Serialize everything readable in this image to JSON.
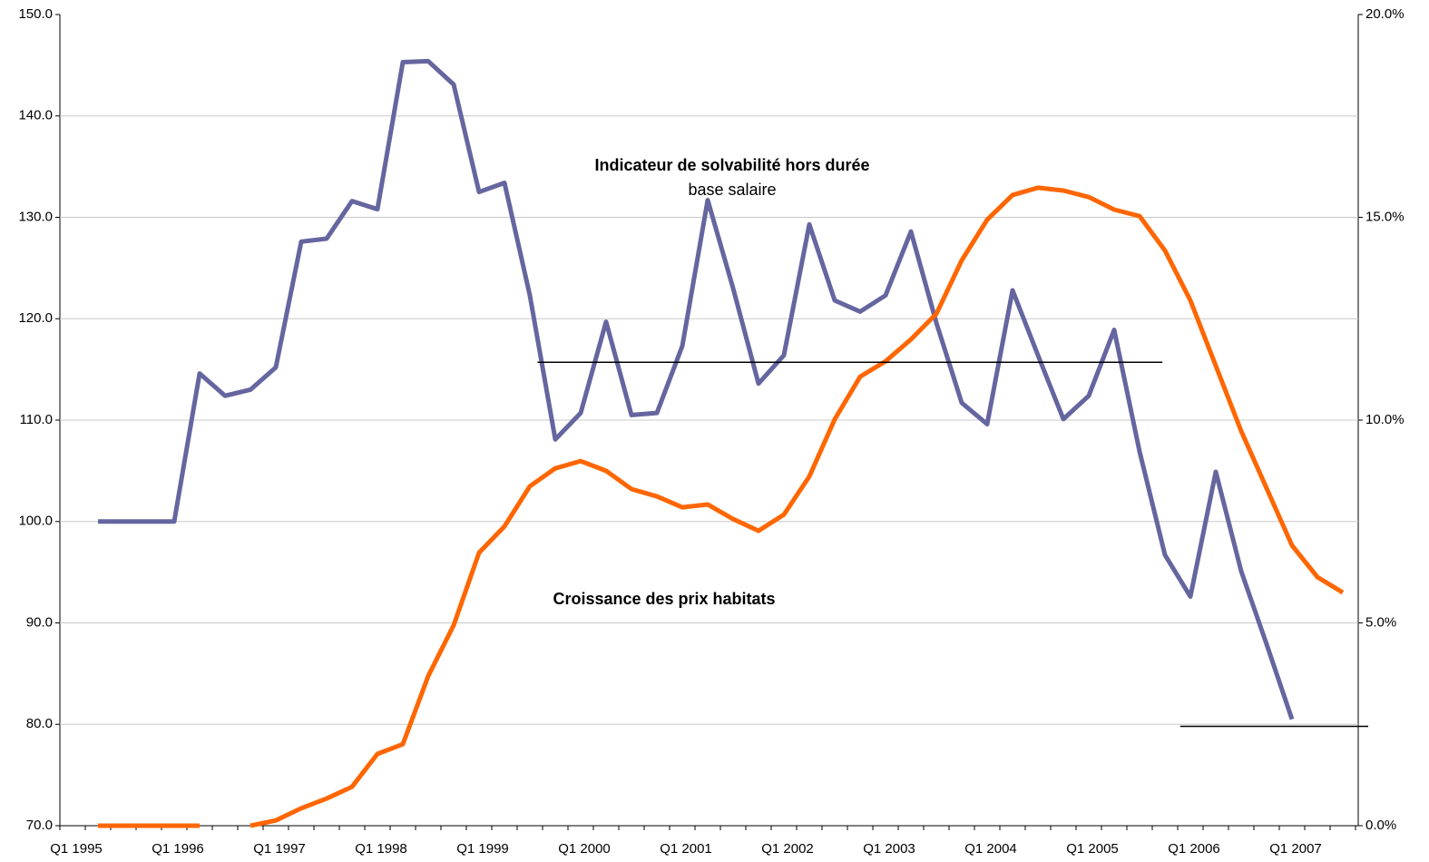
{
  "chart_data": {
    "type": "line",
    "categories": [
      "Q1 1995",
      null,
      null,
      null,
      "Q1 1996",
      null,
      null,
      null,
      "Q1 1997",
      null,
      null,
      null,
      "Q1 1998",
      null,
      null,
      null,
      "Q1 1999",
      null,
      null,
      null,
      "Q1 2000",
      null,
      null,
      null,
      "Q1 2001",
      null,
      null,
      null,
      "Q1 2002",
      null,
      null,
      null,
      "Q1 2003",
      null,
      null,
      null,
      "Q1 2004",
      null,
      null,
      null,
      "Q1 2005",
      null,
      null,
      null,
      "Q1 2006",
      null,
      null,
      null,
      "Q1 2007",
      null,
      null
    ],
    "series": [
      {
        "name": "Indicateur de solvabilité hors durée",
        "color": "#65659f",
        "axis": "y",
        "values": [
          null,
          100,
          100,
          100,
          100,
          114.6,
          112.4,
          113.0,
          115.2,
          127.6,
          127.9,
          131.6,
          130.8,
          145.3,
          145.4,
          143.1,
          132.5,
          133.4,
          122.3,
          108.1,
          110.7,
          119.7,
          110.5,
          110.7,
          117.3,
          131.7,
          123.0,
          113.6,
          116.4,
          129.3,
          121.8,
          120.7,
          122.3,
          128.6,
          119.6,
          111.7,
          109.6,
          122.8,
          116.4,
          110.1,
          112.4,
          118.9,
          106.9,
          96.7,
          92.6,
          104.9,
          95.1,
          87.9,
          80.5,
          null,
          null
        ]
      },
      {
        "name": "Croissance des prix habitats",
        "color": "#ff6600",
        "axis": "y2",
        "values": [
          null,
          0,
          0,
          0,
          0,
          0,
          null,
          0,
          0.13,
          0.43,
          0.67,
          0.96,
          1.77,
          2.01,
          3.69,
          4.94,
          6.73,
          7.38,
          8.37,
          8.81,
          8.99,
          8.75,
          8.3,
          8.12,
          7.85,
          7.92,
          7.56,
          7.27,
          7.67,
          8.61,
          10.02,
          11.07,
          11.45,
          11.99,
          12.62,
          13.94,
          14.94,
          15.55,
          15.73,
          15.66,
          15.5,
          15.19,
          15.03,
          14.18,
          12.95,
          11.34,
          9.73,
          8.32,
          6.91,
          6.13,
          5.75
        ]
      }
    ],
    "annotations": [
      "Indicateur de solvabilité hors durée",
      "base salaire",
      "Croissance des prix habitats"
    ],
    "hlines": [
      {
        "value": 115.7,
        "x_range": [
          18.3,
          42.9
        ],
        "color": "#000000"
      },
      {
        "value": 79.8,
        "x_range": [
          43.6,
          51.0
        ],
        "color": "#000000"
      }
    ],
    "ylim": [
      70,
      150
    ],
    "yticks": [
      {
        "value": 70,
        "label": "70.0"
      },
      {
        "value": 80,
        "label": "80.0"
      },
      {
        "value": 90,
        "label": "90.0"
      },
      {
        "value": 100,
        "label": "100.0"
      },
      {
        "value": 110,
        "label": "110.0"
      },
      {
        "value": 120,
        "label": "120.0"
      },
      {
        "value": 130,
        "label": "130.0"
      },
      {
        "value": 140,
        "label": "140.0"
      },
      {
        "value": 150,
        "label": "150.0"
      }
    ],
    "y2lim": [
      0,
      20
    ],
    "y2ticks": [
      {
        "value": 0,
        "label": "0.0%"
      },
      {
        "value": 5,
        "label": "5.0%"
      },
      {
        "value": 10,
        "label": "10.0%"
      },
      {
        "value": 15,
        "label": "15.0%"
      },
      {
        "value": 20,
        "label": "20.0%"
      }
    ],
    "grid": true
  }
}
